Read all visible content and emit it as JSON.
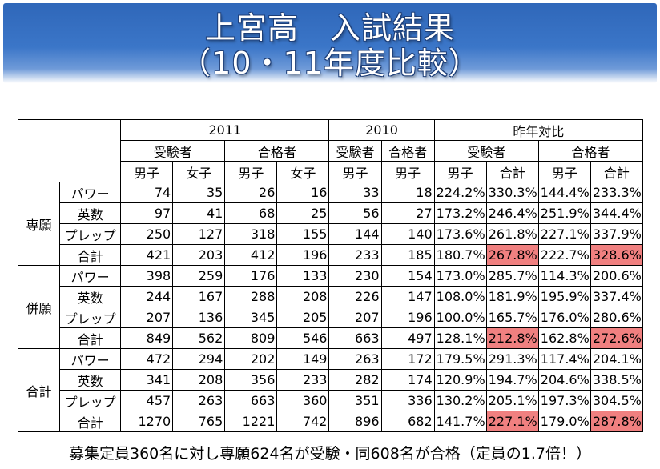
{
  "title": {
    "line1": "上宮高　入試結果",
    "line2": "（10・11年度比較）"
  },
  "table": {
    "years": {
      "y2011": "2011",
      "y2010": "2010",
      "compare": "昨年対比"
    },
    "groups": {
      "applicants": "受験者",
      "passed": "合格者"
    },
    "sub": {
      "male": "男子",
      "female": "女子",
      "total": "合計"
    },
    "sections": [
      {
        "name": "専願",
        "rows": [
          {
            "label": "パワー",
            "a11m": "74",
            "a11f": "35",
            "p11m": "26",
            "p11f": "16",
            "a10m": "33",
            "p10m": "18",
            "ra_m": "224.2%",
            "ra_t": "330.3%",
            "rp_m": "144.4%",
            "rp_t": "233.3%"
          },
          {
            "label": "英数",
            "a11m": "97",
            "a11f": "41",
            "p11m": "68",
            "p11f": "25",
            "a10m": "56",
            "p10m": "27",
            "ra_m": "173.2%",
            "ra_t": "246.4%",
            "rp_m": "251.9%",
            "rp_t": "344.4%"
          },
          {
            "label": "プレップ",
            "a11m": "250",
            "a11f": "127",
            "p11m": "318",
            "p11f": "155",
            "a10m": "144",
            "p10m": "140",
            "ra_m": "173.6%",
            "ra_t": "261.8%",
            "rp_m": "227.1%",
            "rp_t": "337.9%"
          },
          {
            "label": "合計",
            "a11m": "421",
            "a11f": "203",
            "p11m": "412",
            "p11f": "196",
            "a10m": "233",
            "p10m": "185",
            "ra_m": "180.7%",
            "ra_t": "267.8%",
            "rp_m": "222.7%",
            "rp_t": "328.6%"
          }
        ]
      },
      {
        "name": "併願",
        "rows": [
          {
            "label": "パワー",
            "a11m": "398",
            "a11f": "259",
            "p11m": "176",
            "p11f": "133",
            "a10m": "230",
            "p10m": "154",
            "ra_m": "173.0%",
            "ra_t": "285.7%",
            "rp_m": "114.3%",
            "rp_t": "200.6%"
          },
          {
            "label": "英数",
            "a11m": "244",
            "a11f": "167",
            "p11m": "288",
            "p11f": "208",
            "a10m": "226",
            "p10m": "147",
            "ra_m": "108.0%",
            "ra_t": "181.9%",
            "rp_m": "195.9%",
            "rp_t": "337.4%"
          },
          {
            "label": "プレップ",
            "a11m": "207",
            "a11f": "136",
            "p11m": "345",
            "p11f": "205",
            "a10m": "207",
            "p10m": "196",
            "ra_m": "100.0%",
            "ra_t": "165.7%",
            "rp_m": "176.0%",
            "rp_t": "280.6%"
          },
          {
            "label": "合計",
            "a11m": "849",
            "a11f": "562",
            "p11m": "809",
            "p11f": "546",
            "a10m": "663",
            "p10m": "497",
            "ra_m": "128.1%",
            "ra_t": "212.8%",
            "rp_m": "162.8%",
            "rp_t": "272.6%"
          }
        ]
      },
      {
        "name": "合計",
        "rows": [
          {
            "label": "パワー",
            "a11m": "472",
            "a11f": "294",
            "p11m": "202",
            "p11f": "149",
            "a10m": "263",
            "p10m": "172",
            "ra_m": "179.5%",
            "ra_t": "291.3%",
            "rp_m": "117.4%",
            "rp_t": "204.1%"
          },
          {
            "label": "英数",
            "a11m": "341",
            "a11f": "208",
            "p11m": "356",
            "p11f": "233",
            "a10m": "282",
            "p10m": "174",
            "ra_m": "120.9%",
            "ra_t": "194.7%",
            "rp_m": "204.6%",
            "rp_t": "338.5%"
          },
          {
            "label": "プレップ",
            "a11m": "457",
            "a11f": "263",
            "p11m": "663",
            "p11f": "360",
            "a10m": "351",
            "p10m": "336",
            "ra_m": "130.2%",
            "ra_t": "205.1%",
            "rp_m": "197.3%",
            "rp_t": "304.5%"
          },
          {
            "label": "合計",
            "a11m": "1270",
            "a11f": "765",
            "p11m": "1221",
            "p11f": "742",
            "a10m": "896",
            "p10m": "682",
            "ra_m": "141.7%",
            "ra_t": "227.1%",
            "rp_m": "179.0%",
            "rp_t": "287.8%"
          }
        ]
      }
    ],
    "highlight_color": "#f08080"
  },
  "footer": "募集定員360名に対し専願624名が受験・同608名が合格（定員の1.7倍！）"
}
